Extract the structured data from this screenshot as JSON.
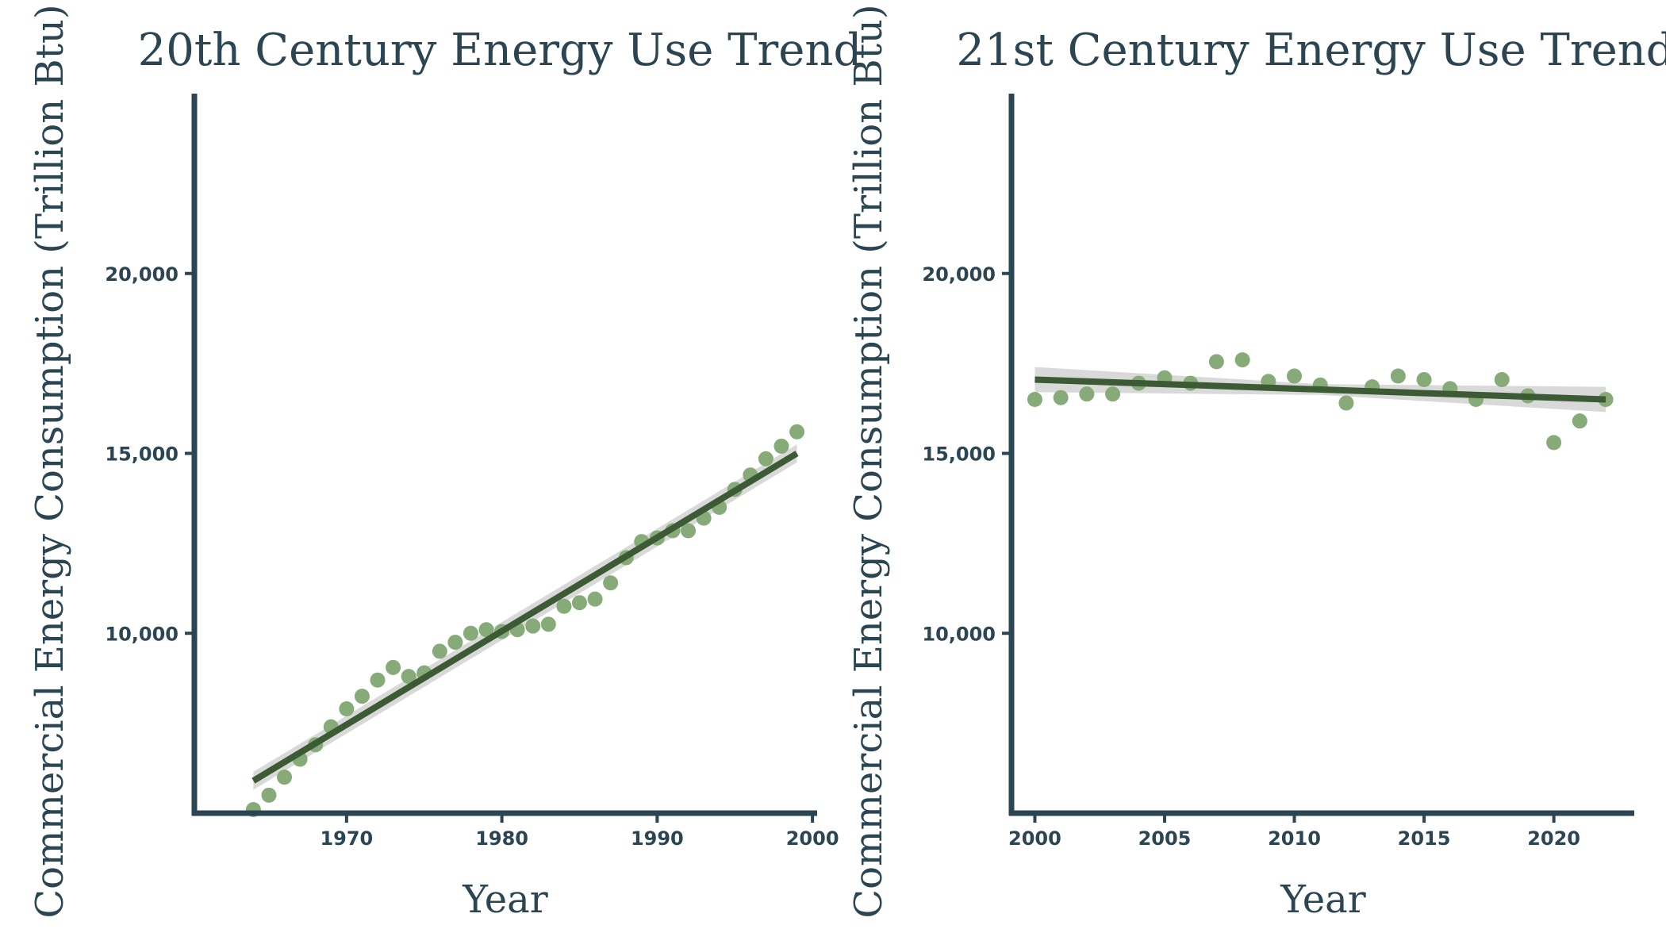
{
  "colors": {
    "axis": "#2b4553",
    "text": "#2b4553",
    "points": "#86ab78",
    "trend": "#3c5a33",
    "band": "#cccccc"
  },
  "chart_data": [
    {
      "type": "scatter",
      "title": "20th Century Energy Use Trend",
      "xlabel": "Year",
      "ylabel": "Commercial Energy Consumption (Trillion Btu)",
      "xlim": [
        1960.2,
        2000.3
      ],
      "ylim": [
        5000,
        25000
      ],
      "x_ticks": [
        1970,
        1980,
        1990,
        2000
      ],
      "x_tick_labels": [
        "1970",
        "1980",
        "1990",
        "2000"
      ],
      "y_ticks": [
        10000,
        15000,
        20000
      ],
      "y_tick_labels": [
        "10,000",
        "15,000",
        "20,000"
      ],
      "grid": false,
      "x": [
        1964,
        1965,
        1966,
        1967,
        1968,
        1969,
        1970,
        1971,
        1972,
        1973,
        1974,
        1975,
        1976,
        1977,
        1978,
        1979,
        1980,
        1981,
        1982,
        1983,
        1984,
        1985,
        1986,
        1987,
        1988,
        1989,
        1990,
        1991,
        1992,
        1993,
        1994,
        1995,
        1996,
        1997,
        1998,
        1999
      ],
      "y": [
        5100,
        5500,
        6000,
        6500,
        6900,
        7400,
        7900,
        8250,
        8700,
        9050,
        8800,
        8900,
        9500,
        9750,
        10000,
        10100,
        10050,
        10100,
        10200,
        10250,
        10750,
        10850,
        10950,
        11400,
        12100,
        12550,
        12650,
        12850,
        12850,
        13200,
        13500,
        14000,
        14400,
        14850,
        15200,
        15600
      ],
      "trend": {
        "x": [
          1964,
          1999
        ],
        "y": [
          5900,
          15000
        ],
        "ci": 250
      }
    },
    {
      "type": "scatter",
      "title": "21st Century Energy Use Trend",
      "xlabel": "Year",
      "ylabel": "Commercial Energy Consumption (Trillion Btu)",
      "xlim": [
        1999.1,
        2023.1
      ],
      "ylim": [
        5000,
        25000
      ],
      "x_ticks": [
        2000,
        2005,
        2010,
        2015,
        2020
      ],
      "x_tick_labels": [
        "2000",
        "2005",
        "2010",
        "2015",
        "2020"
      ],
      "y_ticks": [
        10000,
        15000,
        20000
      ],
      "y_tick_labels": [
        "10,000",
        "15,000",
        "20,000"
      ],
      "grid": false,
      "x": [
        2000,
        2001,
        2002,
        2003,
        2004,
        2005,
        2006,
        2007,
        2008,
        2009,
        2010,
        2011,
        2012,
        2013,
        2014,
        2015,
        2016,
        2017,
        2018,
        2019,
        2020,
        2021,
        2022
      ],
      "y": [
        16500,
        16550,
        16650,
        16650,
        16950,
        17100,
        16950,
        17550,
        17600,
        17000,
        17150,
        16900,
        16400,
        16850,
        17150,
        17050,
        16800,
        16500,
        17050,
        16600,
        15300,
        15900,
        16500
      ],
      "trend": {
        "x": [
          2000,
          2022
        ],
        "y": [
          17050,
          16500
        ],
        "ci_ends": 350,
        "ci_mid": 150
      }
    }
  ]
}
